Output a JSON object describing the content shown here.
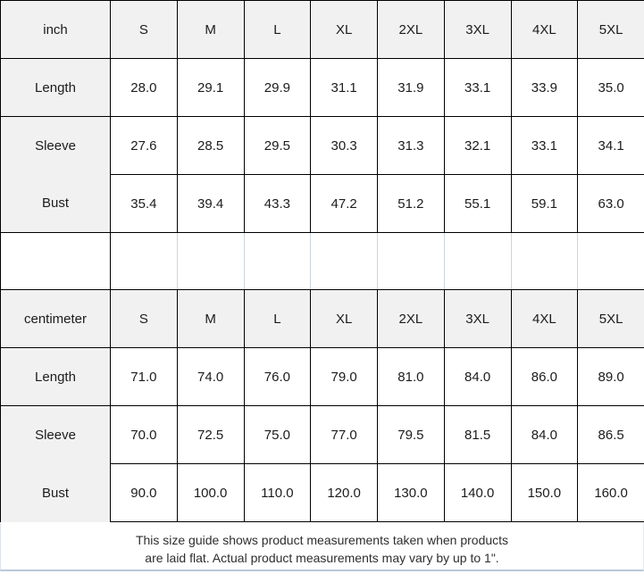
{
  "colors": {
    "border_black": "#000000",
    "header_fill": "#f1f1f1",
    "spacer_gridline": "#cbd5de",
    "footer_rule": "#b7c8da",
    "text": "#1c1c1c"
  },
  "inch_table": {
    "unit_header": "inch",
    "sizes": [
      "S",
      "M",
      "L",
      "XL",
      "2XL",
      "3XL",
      "4XL",
      "5XL"
    ],
    "rows": [
      {
        "label": "Length",
        "values": [
          "28.0",
          "29.1",
          "29.9",
          "31.1",
          "31.9",
          "33.1",
          "33.9",
          "35.0"
        ]
      },
      {
        "label": "Sleeve",
        "values": [
          "27.6",
          "28.5",
          "29.5",
          "30.3",
          "31.3",
          "32.1",
          "33.1",
          "34.1"
        ]
      },
      {
        "label": "Bust",
        "values": [
          "35.4",
          "39.4",
          "43.3",
          "47.2",
          "51.2",
          "55.1",
          "59.1",
          "63.0"
        ]
      }
    ]
  },
  "cm_table": {
    "unit_header": "centimeter",
    "sizes": [
      "S",
      "M",
      "L",
      "XL",
      "2XL",
      "3XL",
      "4XL",
      "5XL"
    ],
    "rows": [
      {
        "label": "Length",
        "values": [
          "71.0",
          "74.0",
          "76.0",
          "79.0",
          "81.0",
          "84.0",
          "86.0",
          "89.0"
        ]
      },
      {
        "label": "Sleeve",
        "values": [
          "70.0",
          "72.5",
          "75.0",
          "77.0",
          "79.5",
          "81.5",
          "84.0",
          "86.5"
        ]
      },
      {
        "label": "Bust",
        "values": [
          "90.0",
          "100.0",
          "110.0",
          "120.0",
          "130.0",
          "140.0",
          "150.0",
          "160.0"
        ]
      }
    ]
  },
  "footer": {
    "line1": "This size guide shows product measurements taken when products",
    "line2": "are laid flat. Actual product measurements may vary by up to 1\"."
  }
}
